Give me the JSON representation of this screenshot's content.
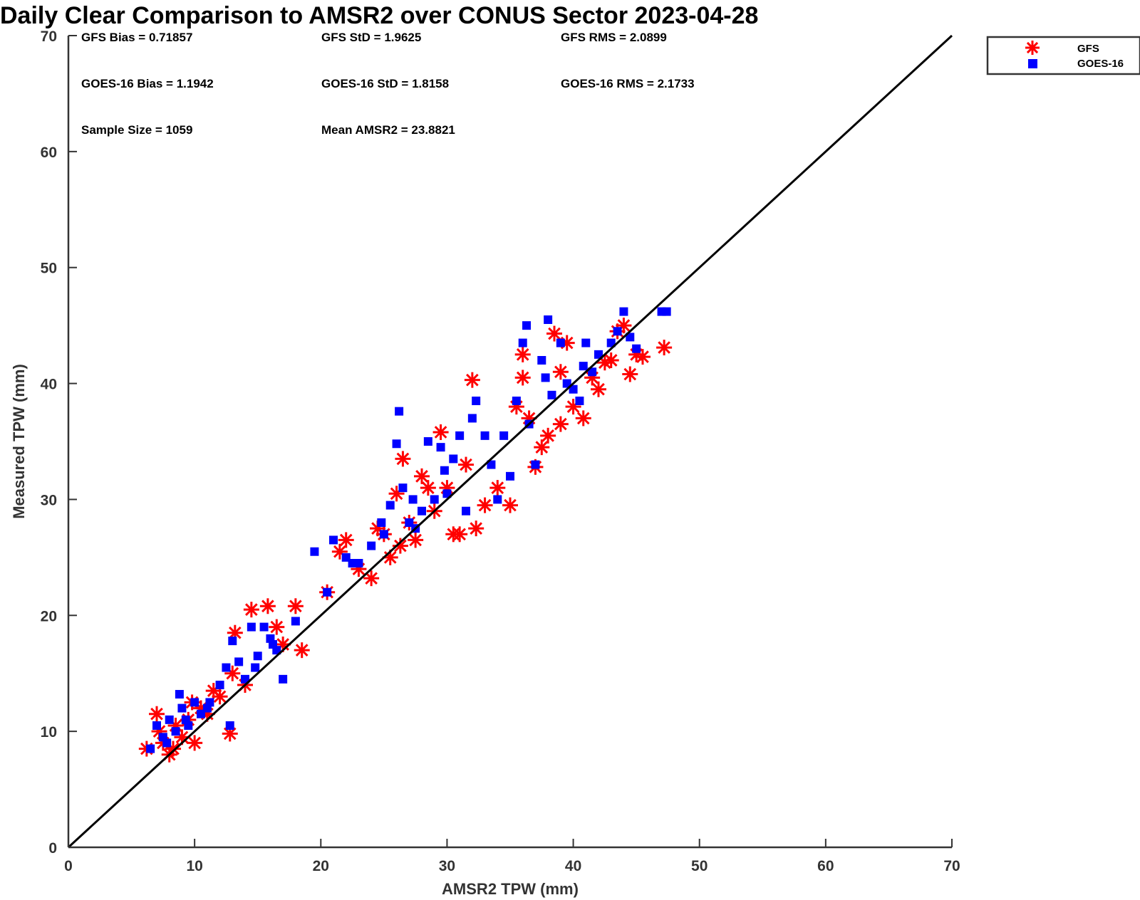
{
  "title": "Daily Clear Comparison to AMSR2 over CONUS Sector 2023-04-28",
  "stats": [
    {
      "label": "GFS Bias = 0.71857"
    },
    {
      "label": "GFS StD = 1.9625"
    },
    {
      "label": "GFS RMS = 2.0899"
    },
    {
      "label": "GOES-16 Bias = 1.1942"
    },
    {
      "label": "GOES-16 StD = 1.8158"
    },
    {
      "label": "GOES-16 RMS = 2.1733"
    },
    {
      "label": "Sample Size = 1059"
    },
    {
      "label": "Mean AMSR2 = 23.8821"
    }
  ],
  "legend": {
    "gfs": "GFS",
    "goes": "GOES-16"
  },
  "colors": {
    "gfs": "#ff0000",
    "goes": "#0000ff",
    "reference_line": "#000000"
  },
  "chart_data": {
    "type": "scatter",
    "xlabel": "AMSR2 TPW (mm)",
    "ylabel": "Measured TPW (mm)",
    "xlim": [
      0,
      70
    ],
    "ylim": [
      0,
      70
    ],
    "xticks": [
      "0",
      "10",
      "20",
      "30",
      "40",
      "50",
      "60",
      "70"
    ],
    "yticks": [
      "0",
      "10",
      "20",
      "30",
      "40",
      "50",
      "60",
      "70"
    ],
    "grid": false,
    "legend_position": "outside top-right",
    "reference_line": {
      "x": [
        0,
        70
      ],
      "y": [
        0,
        70
      ]
    },
    "series": [
      {
        "name": "GFS",
        "marker": "asterisk",
        "color": "#ff0000",
        "x": [
          6.2,
          7.0,
          7.5,
          8.0,
          8.5,
          9.0,
          9.5,
          10.0,
          10.5,
          11.0,
          12.0,
          12.8,
          13.2,
          14.5,
          15.8,
          17.0,
          18.0,
          18.5,
          20.5,
          21.5,
          22.0,
          23.0,
          24.0,
          25.0,
          25.5,
          26.0,
          26.5,
          27.0,
          27.5,
          28.0,
          29.0,
          29.5,
          30.0,
          30.5,
          31.0,
          32.0,
          32.3,
          33.0,
          34.0,
          35.0,
          35.5,
          36.0,
          36.5,
          37.0,
          37.5,
          38.0,
          38.5,
          39.0,
          39.5,
          40.0,
          40.8,
          41.5,
          42.0,
          43.0,
          43.5,
          44.0,
          44.5,
          45.0,
          45.5,
          47.2,
          7.2,
          8.3,
          9.8,
          11.5,
          13.0,
          14.0,
          16.5,
          24.5,
          26.3,
          28.5,
          31.5,
          36.0,
          39.0,
          42.5
        ],
        "y": [
          8.5,
          11.5,
          9.0,
          8.0,
          10.5,
          9.5,
          11.0,
          9.0,
          12.0,
          11.5,
          13.0,
          9.8,
          18.5,
          20.5,
          20.8,
          17.5,
          20.8,
          17.0,
          22.0,
          25.5,
          26.5,
          24.0,
          23.2,
          27.0,
          25.0,
          30.5,
          33.5,
          28.0,
          26.5,
          32.0,
          29.0,
          35.8,
          31.0,
          27.0,
          27.0,
          40.3,
          27.5,
          29.5,
          31.0,
          29.5,
          38.0,
          42.5,
          37.0,
          32.8,
          34.5,
          35.5,
          44.3,
          36.5,
          43.5,
          38.0,
          37.0,
          40.5,
          39.5,
          42.0,
          44.5,
          45.0,
          40.8,
          42.5,
          42.3,
          43.1,
          10.0,
          8.5,
          12.5,
          13.5,
          15.0,
          14.0,
          19.0,
          27.5,
          26.0,
          31.0,
          33.0,
          40.5,
          41.0,
          41.8
        ]
      },
      {
        "name": "GOES-16",
        "marker": "square",
        "color": "#0000ff",
        "x": [
          6.5,
          7.0,
          7.5,
          8.0,
          8.5,
          8.8,
          9.0,
          9.5,
          10.0,
          10.5,
          11.0,
          12.0,
          12.5,
          13.0,
          13.5,
          14.0,
          14.5,
          15.0,
          15.5,
          16.0,
          16.5,
          17.0,
          18.0,
          19.5,
          20.5,
          21.0,
          22.0,
          23.0,
          24.0,
          25.0,
          25.5,
          26.0,
          26.2,
          26.5,
          27.0,
          27.5,
          28.0,
          28.5,
          29.0,
          29.5,
          30.0,
          30.5,
          31.0,
          31.5,
          32.0,
          32.3,
          33.0,
          33.5,
          34.0,
          35.0,
          35.5,
          36.0,
          36.3,
          36.5,
          37.0,
          37.5,
          38.0,
          38.3,
          39.0,
          39.5,
          40.0,
          40.5,
          41.0,
          41.5,
          42.0,
          43.0,
          43.5,
          44.0,
          44.5,
          45.0,
          47.0,
          47.4,
          7.8,
          9.3,
          11.2,
          12.8,
          14.8,
          16.2,
          22.5,
          24.8,
          27.3,
          29.8,
          34.5,
          37.8,
          40.8
        ],
        "y": [
          8.5,
          10.5,
          9.5,
          11.0,
          10.0,
          13.2,
          12.0,
          10.5,
          12.5,
          11.5,
          12.0,
          14.0,
          15.5,
          17.8,
          16.0,
          14.5,
          19.0,
          16.5,
          19.0,
          18.0,
          17.0,
          14.5,
          19.5,
          25.5,
          22.0,
          26.5,
          25.0,
          24.5,
          26.0,
          27.0,
          29.5,
          34.8,
          37.6,
          31.0,
          28.0,
          27.5,
          29.0,
          35.0,
          30.0,
          34.5,
          30.5,
          33.5,
          35.5,
          29.0,
          37.0,
          38.5,
          35.5,
          33.0,
          30.0,
          32.0,
          38.5,
          43.5,
          45.0,
          36.5,
          33.0,
          42.0,
          45.5,
          39.0,
          43.5,
          40.0,
          39.5,
          38.5,
          43.5,
          41.0,
          42.5,
          43.5,
          44.5,
          46.2,
          44.0,
          43.0,
          46.2,
          46.2,
          9.0,
          11.0,
          12.5,
          10.5,
          15.5,
          17.5,
          24.5,
          28.0,
          30.0,
          32.5,
          35.5,
          40.5,
          41.5
        ]
      }
    ]
  }
}
